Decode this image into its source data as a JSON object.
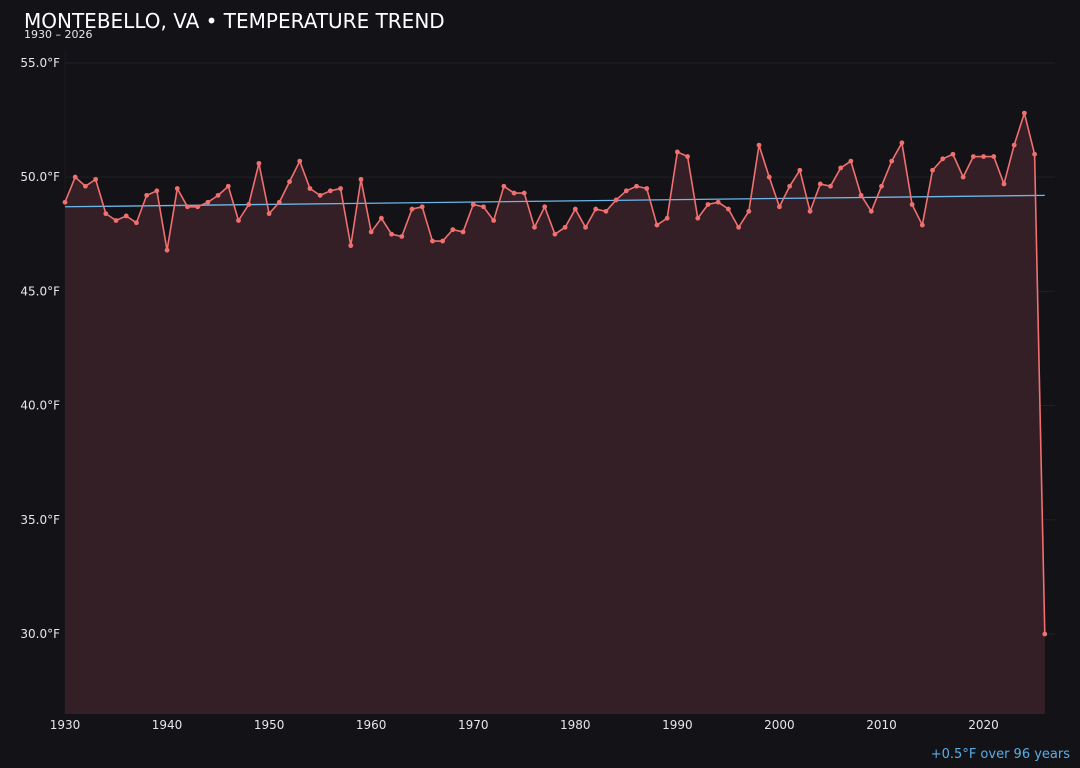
{
  "chart_data": {
    "type": "line",
    "title": "MONTEBELLO, VA • TEMPERATURE TREND",
    "subtitle": "1930 – 2026",
    "xlabel": "",
    "ylabel": "",
    "xlim": [
      1930,
      2027
    ],
    "ylim": [
      26.5,
      56.0
    ],
    "x_ticks": [
      1930,
      1940,
      1950,
      1960,
      1970,
      1980,
      1990,
      2000,
      2010,
      2020
    ],
    "x_tick_labels": [
      "1930",
      "1940",
      "1950",
      "1960",
      "1970",
      "1980",
      "1990",
      "2000",
      "2010",
      "2020"
    ],
    "y_ticks": [
      30,
      35,
      40,
      45,
      50,
      55
    ],
    "y_tick_labels": [
      "30.0°F",
      "35.0°F",
      "40.0°F",
      "45.0°F",
      "50.0°F",
      "55.0°F"
    ],
    "grid": true,
    "series": [
      {
        "color": "#f07070",
        "x": [
          1930,
          1931,
          1932,
          1933,
          1934,
          1935,
          1936,
          1937,
          1938,
          1939,
          1940,
          1941,
          1942,
          1943,
          1944,
          1945,
          1946,
          1947,
          1948,
          1949,
          1950,
          1951,
          1952,
          1953,
          1954,
          1955,
          1956,
          1957,
          1958,
          1959,
          1960,
          1961,
          1962,
          1963,
          1964,
          1965,
          1966,
          1967,
          1968,
          1969,
          1970,
          1971,
          1972,
          1973,
          1974,
          1975,
          1976,
          1977,
          1978,
          1979,
          1980,
          1981,
          1982,
          1983,
          1984,
          1985,
          1986,
          1987,
          1988,
          1989,
          1990,
          1991,
          1992,
          1993,
          1994,
          1995,
          1996,
          1997,
          1998,
          1999,
          2000,
          2001,
          2002,
          2003,
          2004,
          2005,
          2006,
          2007,
          2008,
          2009,
          2010,
          2011,
          2012,
          2013,
          2014,
          2015,
          2016,
          2017,
          2018,
          2019,
          2020,
          2021,
          2022,
          2023,
          2024,
          2025,
          2026
        ],
        "y": [
          48.9,
          50.0,
          49.6,
          49.9,
          48.4,
          48.1,
          48.3,
          48.0,
          49.2,
          49.4,
          46.8,
          49.5,
          48.7,
          48.7,
          48.9,
          49.2,
          49.6,
          48.1,
          48.8,
          50.6,
          48.4,
          48.9,
          49.8,
          50.7,
          49.5,
          49.2,
          49.4,
          49.5,
          47.0,
          49.9,
          47.6,
          48.2,
          47.5,
          47.4,
          48.6,
          48.7,
          47.2,
          47.2,
          47.7,
          47.6,
          48.8,
          48.7,
          48.1,
          49.6,
          49.3,
          49.3,
          47.8,
          48.7,
          47.5,
          47.8,
          48.6,
          47.8,
          48.6,
          48.5,
          49.0,
          49.4,
          49.6,
          49.5,
          47.9,
          48.2,
          51.1,
          50.9,
          48.2,
          48.8,
          48.9,
          48.6,
          47.8,
          48.5,
          51.4,
          50.0,
          48.7,
          49.6,
          50.3,
          48.5,
          49.7,
          49.6,
          50.4,
          50.7,
          49.2,
          48.5,
          49.6,
          50.7,
          51.5,
          48.8,
          47.9,
          50.3,
          50.8,
          51.0,
          50.0,
          50.9,
          50.9,
          50.9,
          49.7,
          51.4,
          52.8,
          51.0,
          30.0
        ]
      }
    ],
    "trend": {
      "color": "#6ab8ea",
      "x": [
        1930,
        2026
      ],
      "y": [
        48.7,
        49.2
      ],
      "label": "+0.5°F over 96 years"
    },
    "colors": {
      "background": "#131217",
      "fill": "#351f26",
      "grid": "#222027"
    }
  }
}
